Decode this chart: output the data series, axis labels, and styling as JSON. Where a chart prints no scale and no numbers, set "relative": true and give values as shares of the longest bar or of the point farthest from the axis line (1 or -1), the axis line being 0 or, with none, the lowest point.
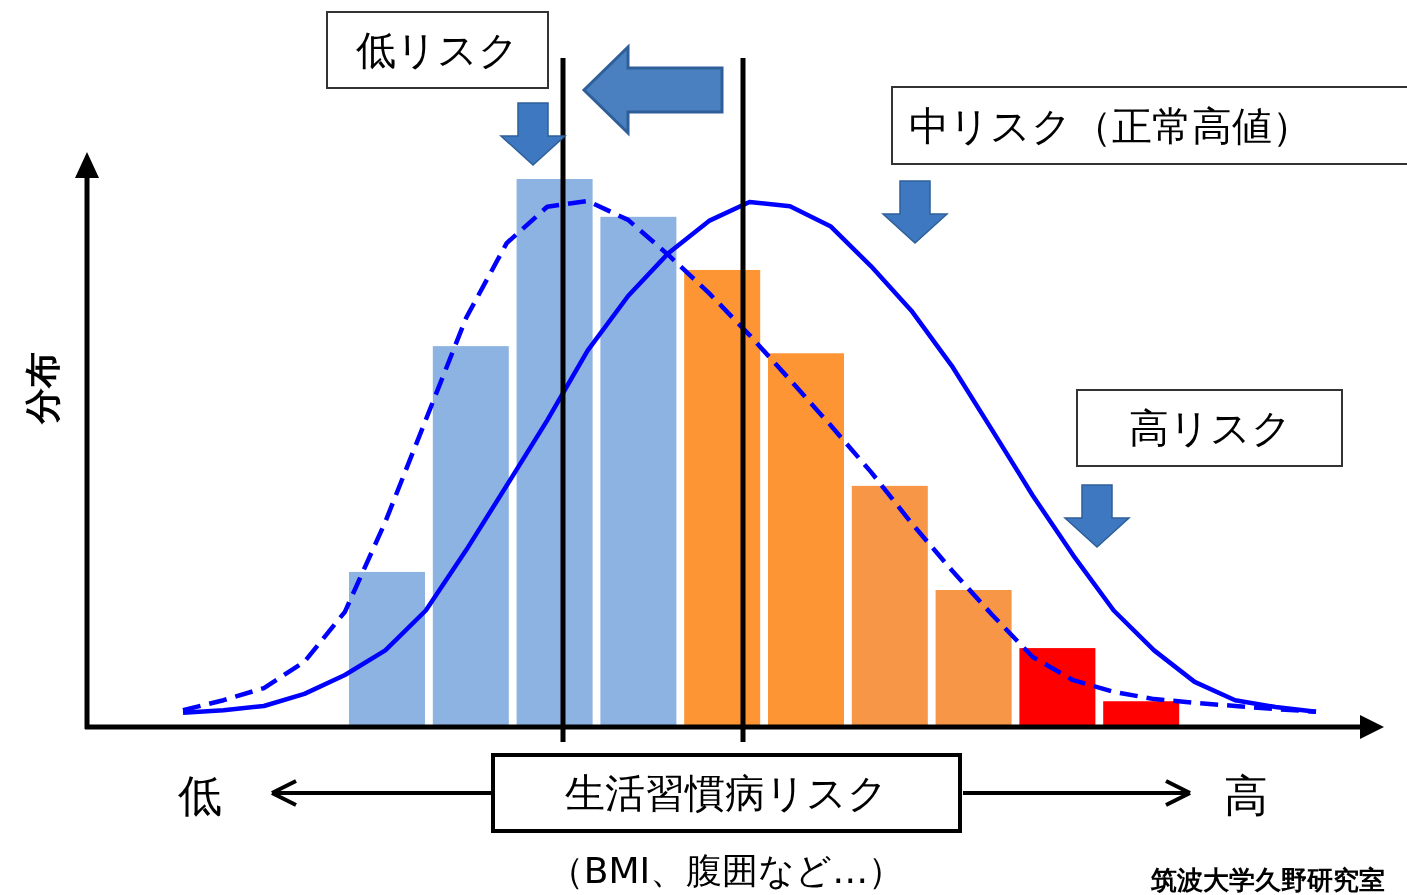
{
  "chart_data": [
    {
      "type": "bar",
      "relative": true,
      "ylabel": "分布",
      "xlabel": "生活習慣病リスク",
      "categories": [
        null,
        null,
        null,
        null,
        null,
        null,
        null,
        null,
        null,
        null
      ],
      "colors": [
        "#8db3e2",
        "#8db3e2",
        "#8db3e2",
        "#8db3e2",
        "#fd9535",
        "#fd9535",
        "#f79646",
        "#f79646",
        "#ff0000",
        "#ff0000"
      ],
      "values": [
        0.283,
        0.695,
        1,
        0.931,
        0.834,
        0.682,
        0.44,
        0.25,
        0.144,
        0.047
      ],
      "annotations": [
        "低リスク",
        "中リスク（正常高値）",
        "高リスク",
        "低",
        "高",
        "（BMI、腹囲など…）",
        "筑波大学久野研究室"
      ]
    },
    {
      "type": "line",
      "relative": true,
      "categories": [
        null,
        null,
        null,
        null,
        null,
        null,
        null,
        null,
        null,
        null,
        null,
        null,
        null,
        null,
        null,
        null,
        null,
        null,
        null,
        null,
        null,
        null,
        null,
        null,
        null,
        null,
        null,
        null,
        null
      ],
      "series": [
        {
          "color": "#0000ff",
          "line_style": "dashed",
          "values": [
            0.032,
            0.051,
            0.074,
            0.124,
            0.219,
            0.39,
            0.584,
            0.778,
            0.92,
            0.989,
            1,
            0.964,
            0.897,
            0.825,
            0.745,
            0.66,
            0.574,
            0.485,
            0.388,
            0.298,
            0.213,
            0.133,
            0.089,
            0.067,
            0.053,
            0.046,
            0.04,
            0.034,
            0.029
          ]
        }
      ]
    },
    {
      "type": "line",
      "relative": true,
      "categories": [
        null,
        null,
        null,
        null,
        null,
        null,
        null,
        null,
        null,
        null,
        null,
        null,
        null,
        null,
        null,
        null,
        null,
        null,
        null,
        null,
        null,
        null,
        null,
        null,
        null,
        null,
        null,
        null,
        null
      ],
      "series": [
        {
          "color": "#0000ff",
          "line_style": "solid",
          "values": [
            0.027,
            0.032,
            0.04,
            0.063,
            0.099,
            0.146,
            0.222,
            0.337,
            0.46,
            0.584,
            0.717,
            0.821,
            0.903,
            0.964,
            1,
            0.992,
            0.954,
            0.878,
            0.793,
            0.688,
            0.565,
            0.441,
            0.327,
            0.222,
            0.146,
            0.086,
            0.051,
            0.038,
            0.029
          ]
        }
      ]
    }
  ]
}
